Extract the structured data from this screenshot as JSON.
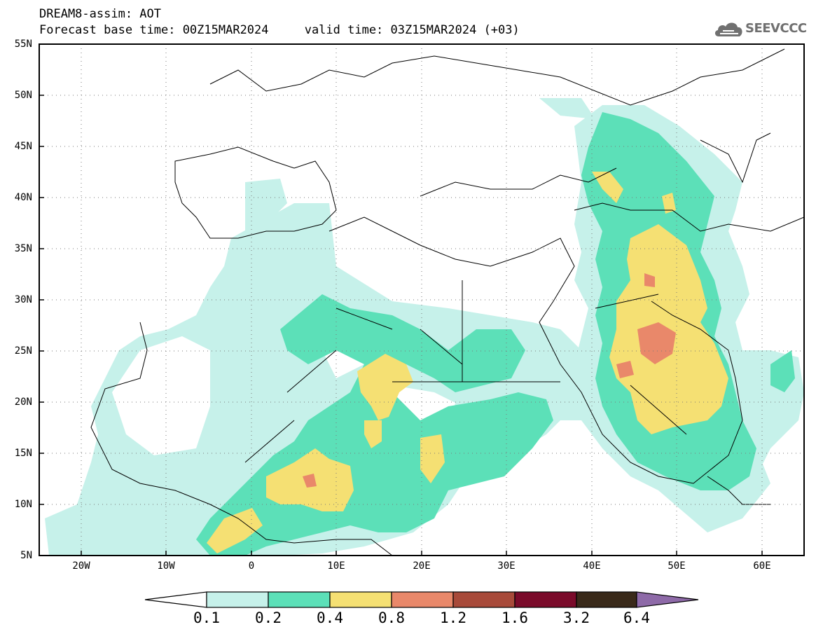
{
  "header": {
    "title": "DREAM8-assim: AOT",
    "base_time": "Forecast base time: 00Z15MAR2024",
    "valid_time": "valid time: 03Z15MAR2024 (+03)"
  },
  "logo": {
    "text": "SEEVCCC",
    "icon": "cloud-icon"
  },
  "axes": {
    "lat_labels": [
      "55N",
      "50N",
      "45N",
      "40N",
      "35N",
      "30N",
      "25N",
      "20N",
      "15N",
      "10N",
      "5N"
    ],
    "lon_labels": [
      "20W",
      "10W",
      "0",
      "10E",
      "20E",
      "30E",
      "40E",
      "50E",
      "60E"
    ],
    "lon_range": [
      -25,
      65
    ],
    "lat_range": [
      5,
      55
    ],
    "grid": "dotted"
  },
  "colorbar": {
    "labels": [
      "0.1",
      "0.2",
      "0.4",
      "0.8",
      "1.2",
      "1.6",
      "3.2",
      "6.4"
    ],
    "colors": [
      "#ffffff",
      "#c6f1ea",
      "#5ce0b8",
      "#f5e073",
      "#e9886a",
      "#a84a3a",
      "#7a0a2a",
      "#3a2a1a",
      "#8e6aa8"
    ]
  },
  "colors": {
    "aot_0_1": "#c6f1ea",
    "aot_0_2": "#5ce0b8",
    "aot_0_4": "#f5e073",
    "aot_0_8": "#e9886a"
  }
}
